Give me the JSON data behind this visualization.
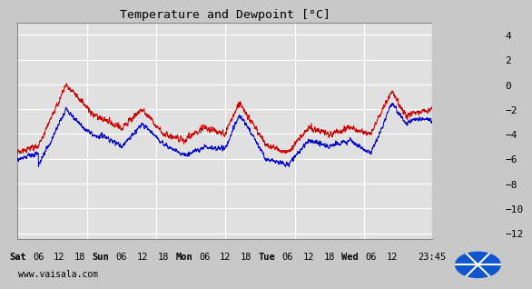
{
  "title": "Temperature and Dewpoint [°C]",
  "ylim": [
    -12.5,
    5.0
  ],
  "yticks": [
    -12,
    -10,
    -8,
    -6,
    -4,
    -2,
    0,
    2,
    4
  ],
  "bg_color": "#c8c8c8",
  "plot_bg_color": "#e0e0e0",
  "grid_color": "#ffffff",
  "temp_color": "#cc0000",
  "dewp_color": "#0000cc",
  "watermark": "www.vaisala.com",
  "x_tick_labels": [
    "Sat",
    "06",
    "12",
    "18",
    "Sun",
    "06",
    "12",
    "18",
    "Mon",
    "06",
    "12",
    "18",
    "Tue",
    "06",
    "12",
    "18",
    "Wed",
    "06",
    "12",
    "23:45"
  ],
  "x_tick_positions": [
    0,
    6,
    12,
    18,
    24,
    30,
    36,
    42,
    48,
    54,
    60,
    66,
    72,
    78,
    84,
    90,
    96,
    102,
    108,
    119.75
  ],
  "x_total_hours": 119.75
}
